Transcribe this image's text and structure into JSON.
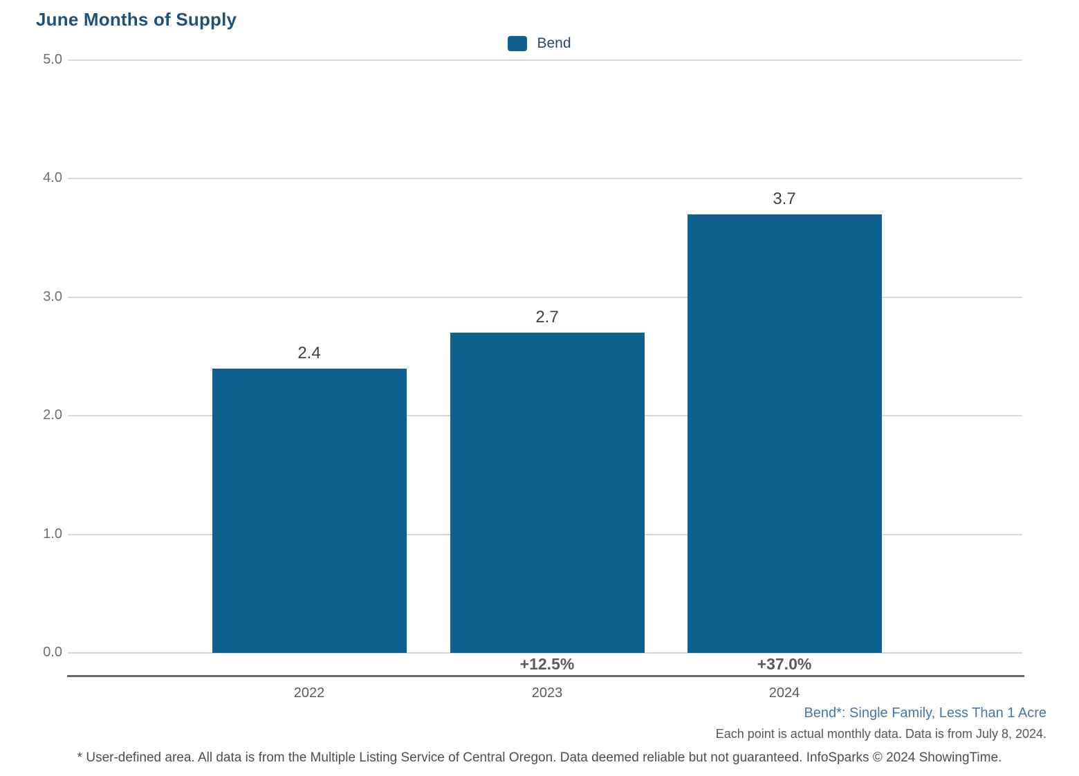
{
  "title": "June Months of Supply",
  "legend": {
    "label": "Bend"
  },
  "colors": {
    "bar": "#10618f",
    "title": "#1d5377",
    "footnote_link": "#4577aa"
  },
  "chart_data": {
    "type": "bar",
    "title": "June Months of Supply",
    "categories": [
      "2022",
      "2023",
      "2024"
    ],
    "series": [
      {
        "name": "Bend",
        "values": [
          2.4,
          2.7,
          3.7
        ]
      }
    ],
    "value_labels": [
      "2.4",
      "2.7",
      "3.7"
    ],
    "pct_change_labels": [
      "",
      "+12.5%",
      "+37.0%"
    ],
    "xlabel": "",
    "ylabel": "",
    "ylim": [
      0,
      5
    ],
    "yticks": [
      "0.0",
      "1.0",
      "2.0",
      "3.0",
      "4.0",
      "5.0"
    ],
    "grid": true,
    "legend_position": "top-center",
    "bar_color": "#10618f"
  },
  "footnotes": {
    "series_definition": "Bend*: Single Family, Less Than 1 Acre",
    "data_note": "Each point is actual monthly data. Data is from July 8, 2024.",
    "disclaimer": "* User-defined area. All data is from the Multiple Listing Service of Central Oregon. Data deemed reliable but not guaranteed. InfoSparks © 2024 ShowingTime."
  }
}
